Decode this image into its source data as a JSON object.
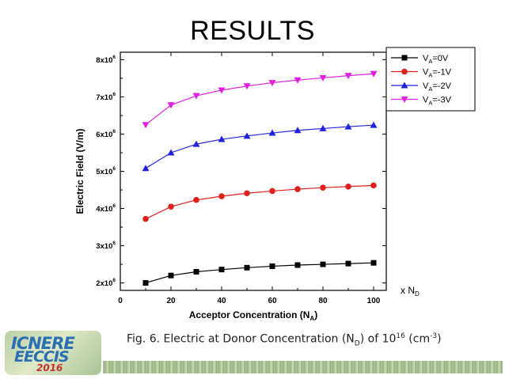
{
  "slide": {
    "title": "RESULTS",
    "caption": {
      "prefix": "Fig. 6. Electric at Donor Concentration (N",
      "sub": "D",
      "mid": ") of 10",
      "sup1": "16",
      "suffix_open": " (cm",
      "sup2": "-3",
      "suffix_close": ")"
    },
    "logo": {
      "line1": "ICNERE",
      "line2": "EECCIS",
      "line3": "2016"
    }
  },
  "chart_data": {
    "type": "line",
    "title": "",
    "xlabel": "Acceptor Concentration (N",
    "xlabel_sub": "A",
    "xlabel_close": ")",
    "x_unit": "x N",
    "x_unit_sub": "D",
    "ylabel": "Electric Field (V/m)",
    "xlim": [
      0,
      105
    ],
    "ylim": [
      1800000,
      8200000
    ],
    "x_ticks": [
      0,
      20,
      40,
      60,
      80,
      100
    ],
    "x_tick_labels": [
      "0",
      "20",
      "40",
      "60",
      "80",
      "100"
    ],
    "y_ticks": [
      2000000,
      3000000,
      4000000,
      5000000,
      6000000,
      7000000,
      8000000
    ],
    "y_tick_mantissas": [
      "2x10",
      "3x10",
      "4x10",
      "5x10",
      "6x10",
      "7x10",
      "8x10"
    ],
    "y_tick_exponent": "6",
    "grid": false,
    "legend_position": "top-right",
    "x": [
      10,
      20,
      30,
      40,
      50,
      60,
      70,
      80,
      90,
      100
    ],
    "series": [
      {
        "name": "V",
        "name_sub": "A",
        "name_tail": "=0V",
        "color": "#000000",
        "marker": "square",
        "values": [
          2000000,
          2200000,
          2300000,
          2360000,
          2410000,
          2450000,
          2480000,
          2500000,
          2520000,
          2540000
        ]
      },
      {
        "name": "V",
        "name_sub": "A",
        "name_tail": "=-1V",
        "color": "#e0201c",
        "marker": "circle",
        "values": [
          3720000,
          4050000,
          4230000,
          4330000,
          4410000,
          4470000,
          4520000,
          4560000,
          4590000,
          4620000
        ]
      },
      {
        "name": "V",
        "name_sub": "A",
        "name_tail": "=-2V",
        "color": "#2222dd",
        "marker": "triangle-up",
        "values": [
          5080000,
          5500000,
          5730000,
          5860000,
          5950000,
          6030000,
          6100000,
          6150000,
          6200000,
          6240000
        ]
      },
      {
        "name": "V",
        "name_sub": "A",
        "name_tail": "=-3V",
        "color": "#e020e0",
        "marker": "triangle-down",
        "values": [
          6250000,
          6780000,
          7030000,
          7180000,
          7290000,
          7380000,
          7450000,
          7510000,
          7570000,
          7620000
        ]
      }
    ]
  }
}
